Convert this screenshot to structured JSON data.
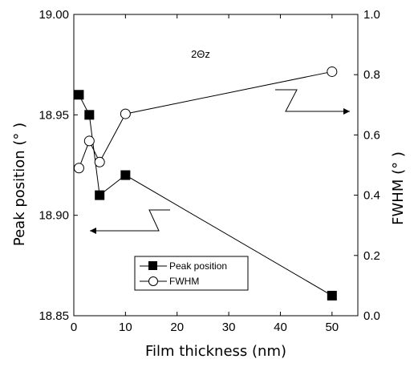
{
  "chart_data": {
    "type": "line",
    "x": [
      1,
      3,
      5,
      10,
      50
    ],
    "xlabel": "Film thickness (nm)",
    "ylabel_left": "Peak position (° )",
    "ylabel_right": "FWHM (° )",
    "xlim": [
      0,
      55
    ],
    "ylim_left": [
      18.85,
      19.0
    ],
    "ylim_right": [
      0.0,
      1.0
    ],
    "xticks": [
      "0",
      "10",
      "20",
      "30",
      "40",
      "50"
    ],
    "yticks_left": [
      "18.85",
      "18.90",
      "18.95",
      "19.00"
    ],
    "yticks_right": [
      "0.0",
      "0.2",
      "0.4",
      "0.6",
      "0.8",
      "1.0"
    ],
    "annotation": "2Θz",
    "series": [
      {
        "name": "Peak position",
        "axis": "left",
        "marker": "filled-square",
        "values": [
          18.96,
          18.95,
          18.91,
          18.92,
          18.86
        ]
      },
      {
        "name": "FWHM",
        "axis": "right",
        "marker": "open-circle",
        "values": [
          0.49,
          0.58,
          0.51,
          0.67,
          0.81
        ]
      }
    ],
    "legend_position": "bottom-center",
    "grid": false
  }
}
